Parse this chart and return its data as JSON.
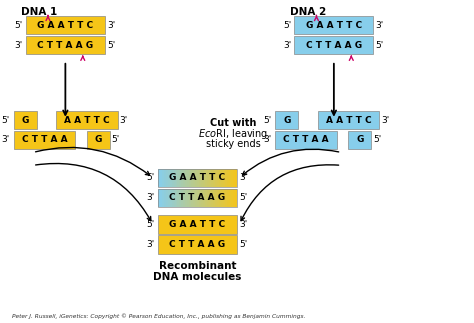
{
  "bg_color": "#ffffff",
  "gold_color": "#F5C518",
  "blue_color": "#87CEEB",
  "text_color": "#000000",
  "arrow_color": "#CC0066",
  "black_arrow": "#000000",
  "title": "Peter J. Russell, iGenetics: Copyright © Pearson Education, Inc., publishing as Benjamin Cummings.",
  "dna1_label": "DNA 1",
  "dna2_label": "DNA 2",
  "recombinant_text": "Recombinant\nDNA molecules"
}
